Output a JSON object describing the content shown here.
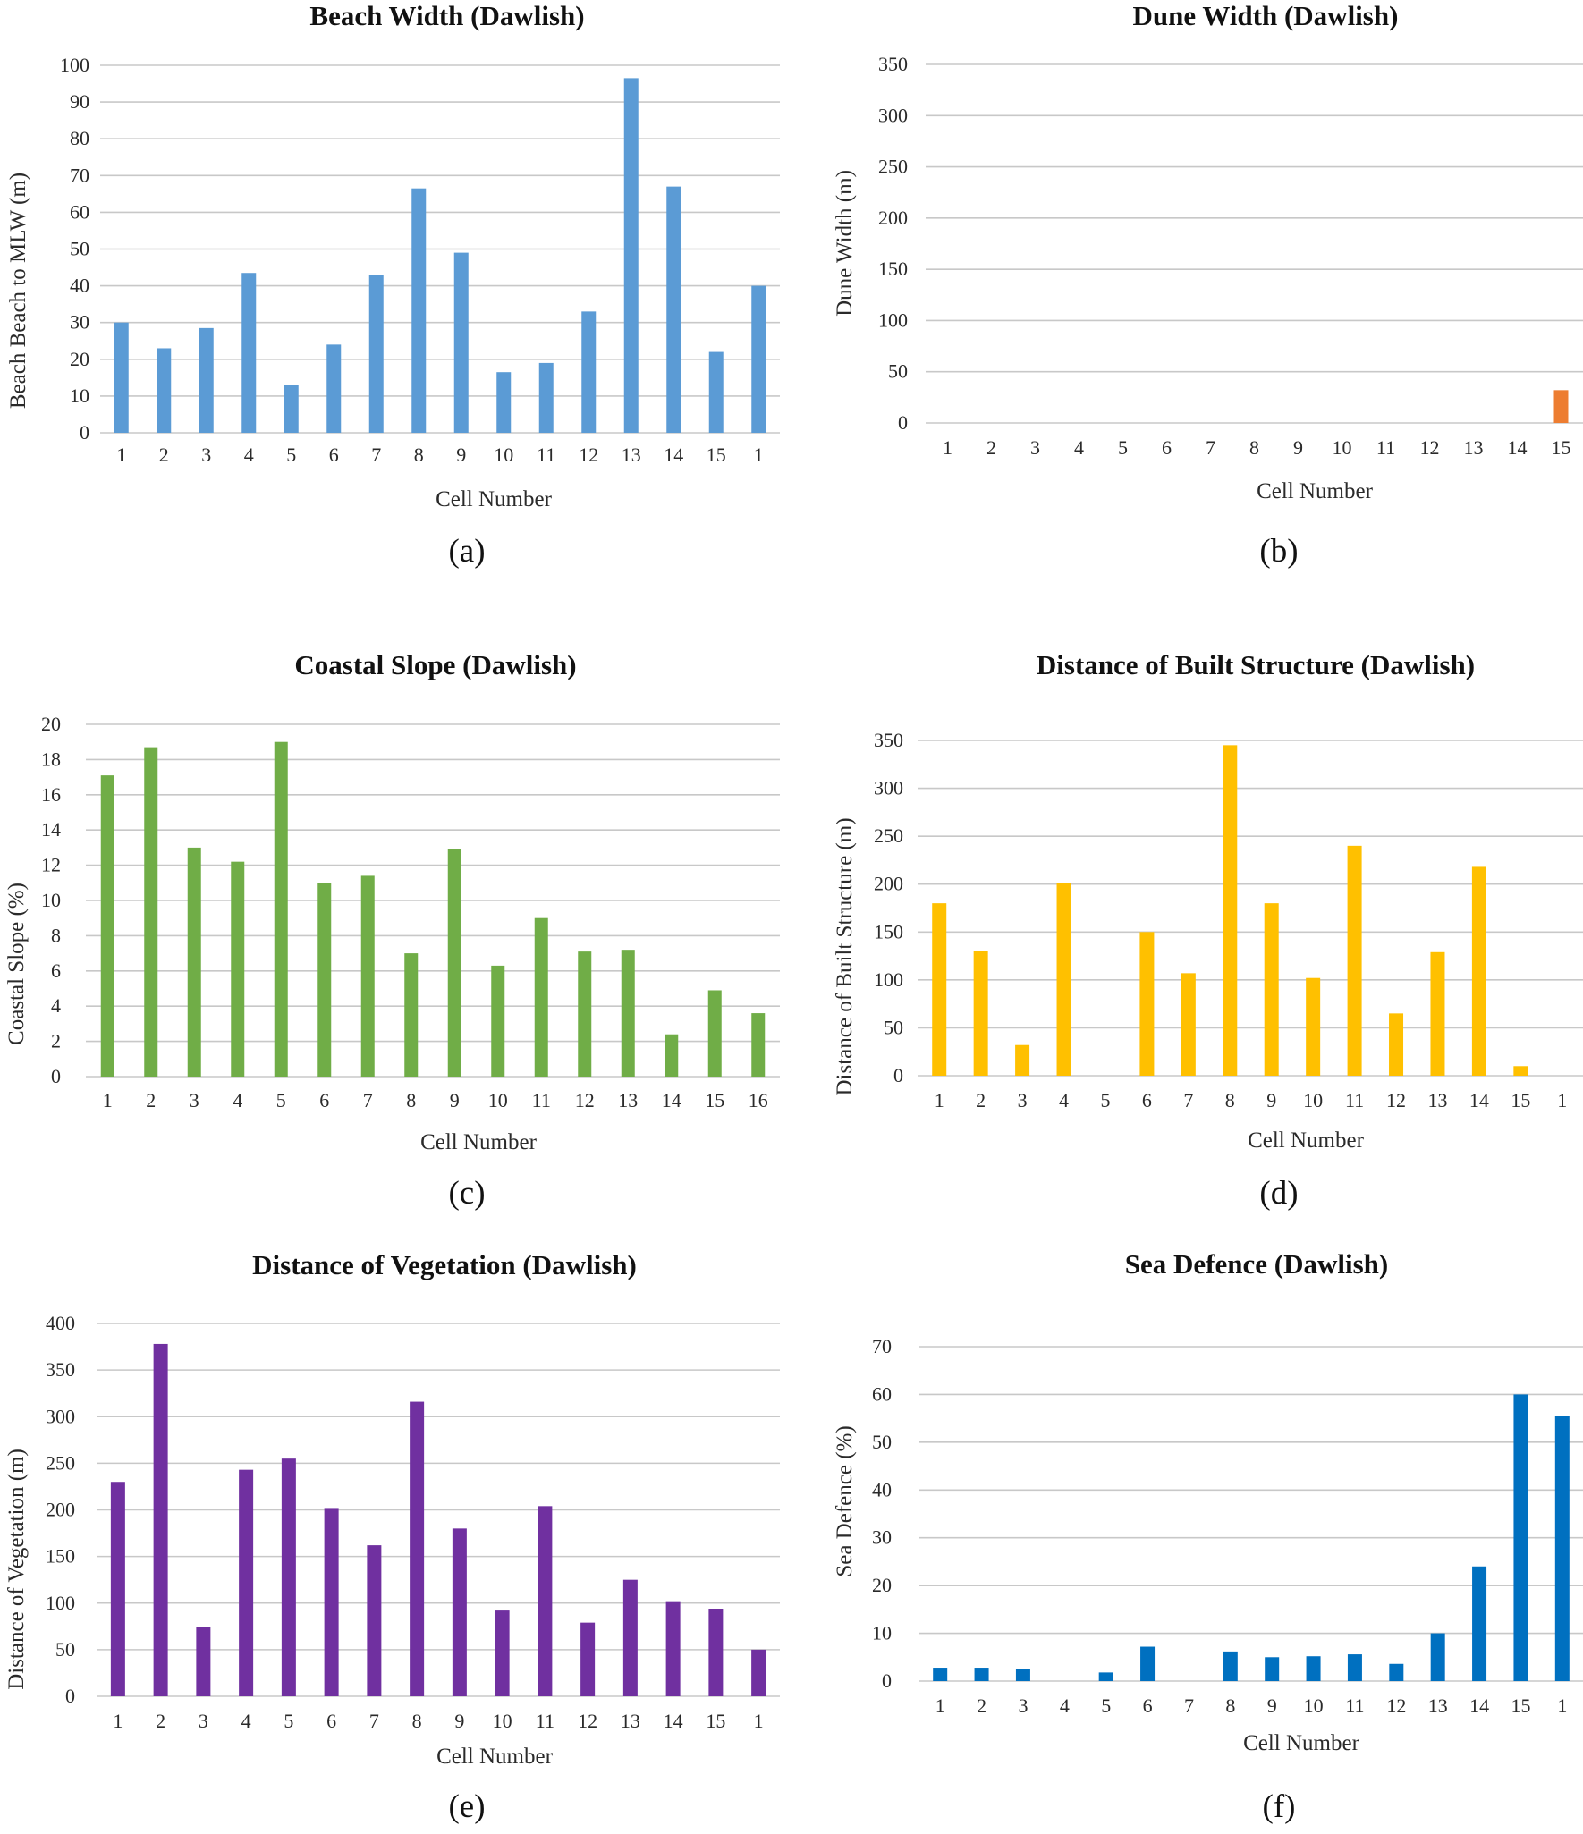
{
  "chart_data": [
    {
      "id": "a",
      "type": "bar",
      "title": "Beach Width (Dawlish)",
      "xlabel": "Cell Number",
      "ylabel": "Beach Beach to MLW (m)",
      "caption": "(a)",
      "color": "#5b9bd5",
      "categories": [
        "1",
        "2",
        "3",
        "4",
        "5",
        "6",
        "7",
        "8",
        "9",
        "10",
        "11",
        "12",
        "13",
        "14",
        "15",
        "1"
      ],
      "values": [
        30,
        23,
        28.5,
        43.5,
        13,
        24,
        43,
        66.5,
        49,
        16.5,
        19,
        33,
        96.5,
        67,
        22,
        40
      ],
      "ylim": [
        0,
        100
      ],
      "yticks": [
        0,
        10,
        20,
        30,
        40,
        50,
        60,
        70,
        80,
        90,
        100
      ],
      "grid": true
    },
    {
      "id": "b",
      "type": "bar",
      "title": "Dune Width (Dawlish)",
      "xlabel": "Cell Number",
      "ylabel": "Dune Width (m)",
      "caption": "(b)",
      "color": "#ed7d31",
      "categories": [
        "1",
        "2",
        "3",
        "4",
        "5",
        "6",
        "7",
        "8",
        "9",
        "10",
        "11",
        "12",
        "13",
        "14",
        "15"
      ],
      "values": [
        0,
        0,
        0,
        0,
        0,
        0,
        0,
        0,
        0,
        0,
        0,
        0,
        0,
        0,
        32
      ],
      "ylim": [
        0,
        350
      ],
      "yticks": [
        0,
        50,
        100,
        150,
        200,
        250,
        300,
        350
      ],
      "grid": true
    },
    {
      "id": "c",
      "type": "bar",
      "title": "Coastal Slope (Dawlish)",
      "xlabel": "Cell Number",
      "ylabel": "Coastal Slope (%)",
      "caption": "(c)",
      "color": "#70ad47",
      "categories": [
        "1",
        "2",
        "3",
        "4",
        "5",
        "6",
        "7",
        "8",
        "9",
        "10",
        "11",
        "12",
        "13",
        "14",
        "15",
        "16"
      ],
      "values": [
        17.1,
        18.7,
        13,
        12.2,
        19,
        11,
        11.4,
        7,
        12.9,
        6.3,
        9,
        7.1,
        7.2,
        2.4,
        4.9,
        3.6
      ],
      "ylim": [
        0,
        20
      ],
      "yticks": [
        0,
        2,
        4,
        6,
        8,
        10,
        12,
        14,
        16,
        18,
        20
      ],
      "grid": true
    },
    {
      "id": "d",
      "type": "bar",
      "title": "Distance of Built Structure (Dawlish)",
      "xlabel": "Cell Number",
      "ylabel": "Distance of Built Structure (m)",
      "caption": "(d)",
      "color": "#ffc000",
      "categories": [
        "1",
        "2",
        "3",
        "4",
        "5",
        "6",
        "7",
        "8",
        "9",
        "10",
        "11",
        "12",
        "13",
        "14",
        "15",
        "1"
      ],
      "values": [
        180,
        130,
        32,
        201,
        0,
        150,
        107,
        345,
        180,
        102,
        240,
        65,
        129,
        218,
        10,
        0
      ],
      "ylim": [
        0,
        350
      ],
      "yticks": [
        0,
        50,
        100,
        150,
        200,
        250,
        300,
        350
      ],
      "grid": true
    },
    {
      "id": "e",
      "type": "bar",
      "title": "Distance of Vegetation (Dawlish)",
      "xlabel": "Cell Number",
      "ylabel": "Distance of Vegetation (m)",
      "caption": "(e)",
      "color": "#7030a0",
      "categories": [
        "1",
        "2",
        "3",
        "4",
        "5",
        "6",
        "7",
        "8",
        "9",
        "10",
        "11",
        "12",
        "13",
        "14",
        "15",
        "1"
      ],
      "values": [
        230,
        378,
        74,
        243,
        255,
        202,
        162,
        316,
        180,
        92,
        204,
        79,
        125,
        102,
        94,
        50
      ],
      "ylim": [
        0,
        400
      ],
      "yticks": [
        0,
        50,
        100,
        150,
        200,
        250,
        300,
        350,
        400
      ],
      "grid": true
    },
    {
      "id": "f",
      "type": "bar",
      "title": "Sea Defence (Dawlish)",
      "xlabel": "Cell Number",
      "ylabel": "Sea Defence (%)",
      "caption": "(f)",
      "color": "#0070c0",
      "categories": [
        "1",
        "2",
        "3",
        "4",
        "5",
        "6",
        "7",
        "8",
        "9",
        "10",
        "11",
        "12",
        "13",
        "14",
        "15",
        "1"
      ],
      "values": [
        2.8,
        2.8,
        2.6,
        0,
        1.8,
        7.2,
        0,
        6.2,
        5,
        5.2,
        5.6,
        3.6,
        10,
        24,
        60,
        55.5
      ],
      "ylim": [
        0,
        70
      ],
      "yticks": [
        0,
        10,
        20,
        30,
        40,
        50,
        60,
        70
      ],
      "grid": true
    }
  ]
}
